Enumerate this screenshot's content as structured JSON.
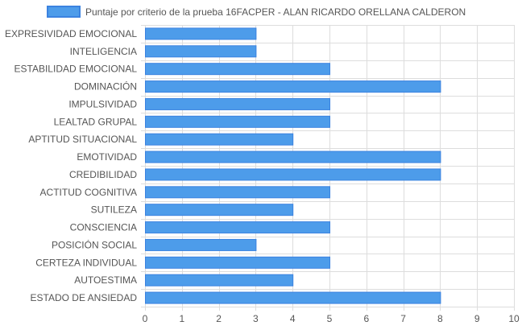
{
  "chart_data": {
    "type": "bar",
    "orientation": "horizontal",
    "legend": {
      "label": "Puntaje por criterio de la prueba 16FACPER - ALAN RICARDO ORELLANA CALDERON",
      "position": "top"
    },
    "categories": [
      "EXPRESIVIDAD EMOCIONAL",
      "INTELIGENCIA",
      "ESTABILIDAD EMOCIONAL",
      "DOMINACIÓN",
      "IMPULSIVIDAD",
      "LEALTAD GRUPAL",
      "APTITUD SITUACIONAL",
      "EMOTIVIDAD",
      "CREDIBILIDAD",
      "ACTITUD COGNITIVA",
      "SUTILEZA",
      "CONSCIENCIA",
      "POSICIÓN SOCIAL",
      "CERTEZA INDIVIDUAL",
      "AUTOESTIMA",
      "ESTADO DE ANSIEDAD"
    ],
    "series": [
      {
        "name": "Puntaje por criterio de la prueba 16FACPER - ALAN RICARDO ORELLANA CALDERON",
        "values": [
          3,
          3,
          5,
          8,
          5,
          5,
          4,
          8,
          8,
          5,
          4,
          5,
          3,
          5,
          4,
          8
        ]
      }
    ],
    "xlim": [
      0,
      10
    ],
    "xticks": [
      "0",
      "1",
      "2",
      "3",
      "4",
      "5",
      "6",
      "7",
      "8",
      "9",
      "10"
    ],
    "grid": true,
    "colors": {
      "bar_fill": "#4d9cea",
      "bar_stroke": "#3b82e0",
      "grid": "#dddddd",
      "text": "#555555"
    }
  }
}
